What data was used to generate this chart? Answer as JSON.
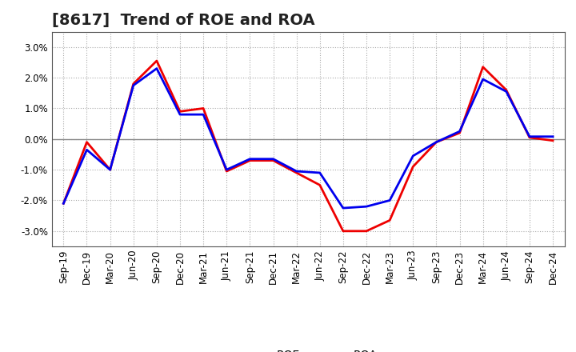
{
  "title": "[8617]  Trend of ROE and ROA",
  "x_labels": [
    "Sep-19",
    "Dec-19",
    "Mar-20",
    "Jun-20",
    "Sep-20",
    "Dec-20",
    "Mar-21",
    "Jun-21",
    "Sep-21",
    "Dec-21",
    "Mar-22",
    "Jun-22",
    "Sep-22",
    "Dec-22",
    "Mar-23",
    "Jun-23",
    "Sep-23",
    "Dec-23",
    "Mar-24",
    "Jun-24",
    "Sep-24",
    "Dec-24"
  ],
  "roe": [
    -2.1,
    -0.1,
    -1.0,
    1.8,
    2.55,
    0.9,
    1.0,
    -1.05,
    -0.7,
    -0.7,
    -1.1,
    -1.5,
    -3.0,
    -3.0,
    -2.65,
    -0.9,
    -0.1,
    0.2,
    2.35,
    1.6,
    0.05,
    -0.05
  ],
  "roa": [
    -2.1,
    -0.35,
    -1.0,
    1.75,
    2.3,
    0.8,
    0.8,
    -1.0,
    -0.65,
    -0.65,
    -1.05,
    -1.1,
    -2.25,
    -2.2,
    -2.0,
    -0.55,
    -0.1,
    0.25,
    1.95,
    1.55,
    0.08,
    0.08
  ],
  "roe_color": "#ee0000",
  "roa_color": "#0000ee",
  "ylim": [
    -3.5,
    3.5
  ],
  "yticks": [
    -3.0,
    -2.0,
    -1.0,
    0.0,
    1.0,
    2.0,
    3.0
  ],
  "bg_color": "#ffffff",
  "plot_bg_color": "#ffffff",
  "grid_color": "#aaaaaa",
  "zero_line_color": "#888888",
  "line_width": 2.0,
  "title_fontsize": 14,
  "tick_fontsize": 8.5
}
